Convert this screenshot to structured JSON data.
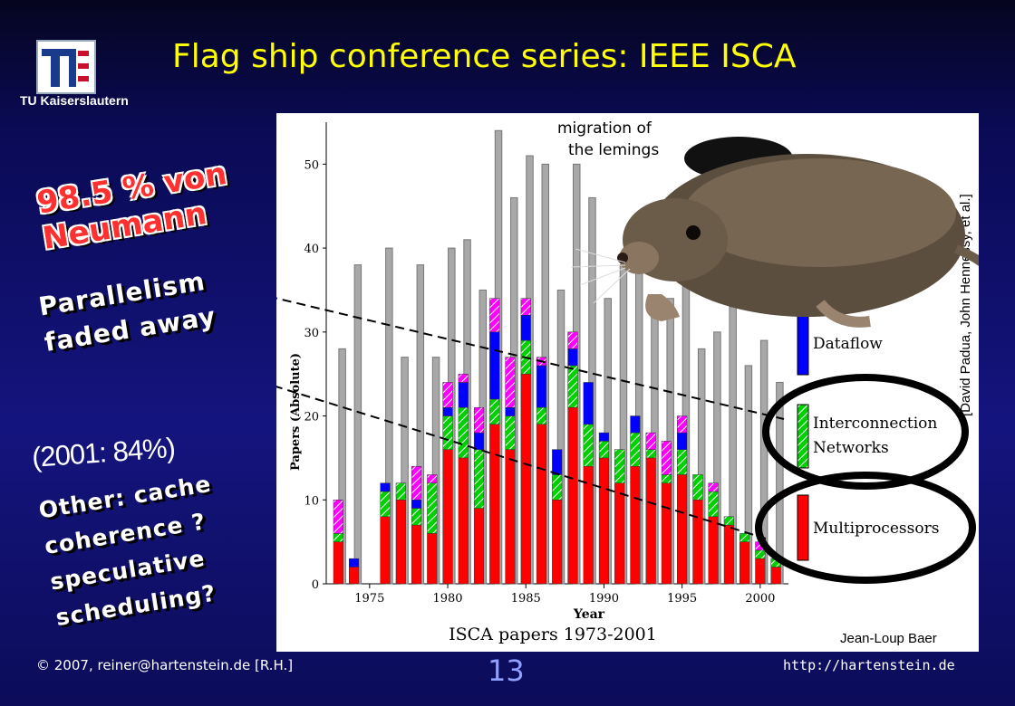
{
  "slide": {
    "logo_text": "TU Kaiserslautern",
    "title": "Flag ship conference series: IEEE ISCA",
    "von_neumann": "98.5 % von\nNeumann",
    "parallelism": "Parallelism\nfaded away",
    "pct_2001": "(2001: 84%)",
    "other": "Other: cache\ncoherence ?\nspeculative\nscheduling?",
    "copyright_symbol": "©",
    "copyright": " 2007, reiner@hartenstein.de [R.H.]",
    "page_number": "13",
    "url": "http://hartenstein.de"
  },
  "colors": {
    "title": "#ffff00",
    "von_neumann": "#ff3030",
    "background": "#14147e",
    "multiprocessors": "#ff0000",
    "interconnection": "#00d000",
    "dataflow": "#0000ff",
    "misc": "#ff00ff",
    "total": "#a8a8a8"
  },
  "annotations": {
    "migration": "migration of\nthe lemings",
    "credits": "[David Padua, John Hennessy, et al.]",
    "author": "Jean-Loup Baer",
    "image": "lemming"
  },
  "chart_data": {
    "type": "bar",
    "title": "ISCA papers 1973-2001",
    "xlabel": "Year",
    "ylabel": "Papers (Absolute)",
    "ylim": [
      0,
      55
    ],
    "yticks": [
      0,
      10,
      20,
      30,
      40,
      50
    ],
    "xticks": [
      1975,
      1980,
      1985,
      1990,
      1995,
      2000
    ],
    "categories": [
      1973,
      1974,
      1975,
      1976,
      1977,
      1978,
      1979,
      1980,
      1981,
      1982,
      1983,
      1984,
      1985,
      1986,
      1987,
      1988,
      1989,
      1990,
      1991,
      1992,
      1993,
      1994,
      1995,
      1996,
      1997,
      1998,
      1999,
      2000,
      2001
    ],
    "series": [
      {
        "name": "Multiprocessors",
        "values": [
          5,
          2,
          0,
          8,
          10,
          7,
          6,
          16,
          15,
          9,
          19,
          16,
          25,
          19,
          10,
          21,
          14,
          15,
          12,
          14,
          15,
          12,
          13,
          10,
          8,
          7,
          5,
          3,
          2
        ]
      },
      {
        "name": "Interconnection Networks",
        "values": [
          1,
          0,
          0,
          3,
          2,
          2,
          6,
          4,
          6,
          7,
          3,
          4,
          4,
          2,
          3,
          5,
          5,
          2,
          4,
          4,
          1,
          1,
          3,
          3,
          3,
          1,
          1,
          1,
          1
        ]
      },
      {
        "name": "Dataflow",
        "values": [
          0,
          1,
          0,
          1,
          0,
          1,
          0,
          1,
          3,
          2,
          8,
          1,
          3,
          5,
          3,
          2,
          5,
          1,
          0,
          2,
          0,
          0,
          2,
          0,
          0,
          0,
          0,
          0,
          0
        ]
      },
      {
        "name": "",
        "values": [
          4,
          0,
          0,
          0,
          0,
          4,
          1,
          3,
          1,
          3,
          4,
          6,
          2,
          1,
          0,
          2,
          0,
          0,
          0,
          0,
          2,
          4,
          2,
          0,
          1,
          0,
          0,
          1,
          0
        ]
      },
      {
        "name": "total",
        "values": [
          28,
          38,
          0,
          40,
          27,
          38,
          27,
          40,
          41,
          35,
          54,
          46,
          51,
          50,
          35,
          50,
          46,
          34,
          38,
          40,
          33,
          34,
          38,
          28,
          30,
          33,
          26,
          29,
          24
        ]
      }
    ],
    "legend": [
      "Dataflow",
      "Interconnection\nNetworks",
      "Multiprocessors"
    ],
    "legend_position": "right"
  }
}
